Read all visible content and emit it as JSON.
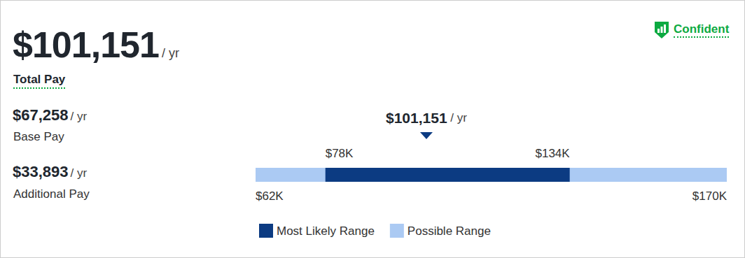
{
  "header": {
    "total_pay": "$101,151",
    "total_pay_unit": "/ yr",
    "total_pay_label": "Total Pay",
    "confidence": "Confident"
  },
  "breakdown": [
    {
      "value": "$67,258",
      "unit": "/ yr",
      "label": "Base Pay"
    },
    {
      "value": "$33,893",
      "unit": "/ yr",
      "label": "Additional Pay"
    }
  ],
  "chart_data": {
    "type": "range",
    "xlim": [
      62000,
      170000
    ],
    "tick_labels": false,
    "legend": "bottom",
    "ranges": [
      {
        "name": "Most Likely Range",
        "low": 78000,
        "high": 134000,
        "low_label": "$78K",
        "high_label": "$134K",
        "color": "#0c3b82"
      },
      {
        "name": "Possible Range",
        "low": 62000,
        "high": 170000,
        "low_label": "$62K",
        "high_label": "$170K",
        "color": "#abcaf3"
      }
    ],
    "marker": {
      "value": 101151,
      "label": "$101,151",
      "unit": "/ yr"
    }
  }
}
